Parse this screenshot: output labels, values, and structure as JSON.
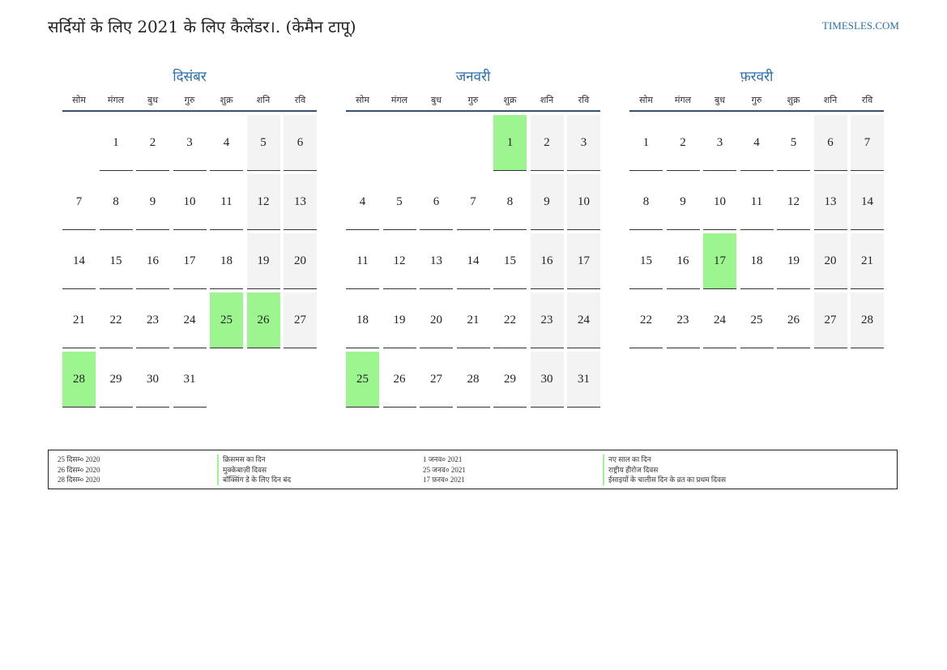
{
  "header": {
    "title": "सर्दियों के लिए 2021 के लिए कैलेंडर।. (केमैन टापू)",
    "brand": "TIMESLES.COM"
  },
  "colors": {
    "holiday": "#9cf58f",
    "weekend": "#f3f3f3",
    "accent": "#2a6fb0",
    "rule": "#3c4f6b"
  },
  "weekdays": [
    "सोम",
    "मंगल",
    "बुध",
    "गुरु",
    "शुक्र",
    "शनि",
    "रवि"
  ],
  "months": [
    {
      "name": "दिसंबर",
      "offset": 1,
      "days": 31,
      "holidays": [
        25,
        26,
        28
      ]
    },
    {
      "name": "जनवरी",
      "offset": 4,
      "days": 31,
      "holidays": [
        1,
        25
      ]
    },
    {
      "name": "फ़रवरी",
      "offset": 0,
      "days": 28,
      "holidays": [
        17
      ]
    }
  ],
  "legend": {
    "left": [
      {
        "date": "25 दिसम्‍० 2020",
        "name": "क्रिसमस का दिन"
      },
      {
        "date": "26 दिसम्‍० 2020",
        "name": "मुक्केबाज़ी दिवस"
      },
      {
        "date": "28 दिसम्‍० 2020",
        "name": "बॉक्सिंग डे के लिए दिन बंद"
      }
    ],
    "right": [
      {
        "date": "1 जनव० 2021",
        "name": "नए साल का दिन"
      },
      {
        "date": "25 जनव० 2021",
        "name": "राष्ट्रीय हीरोज दिवस"
      },
      {
        "date": "17 फ़रव० 2021",
        "name": "ईसाइयों के चालीस दिन के व्रत का प्रथम दिवस"
      }
    ]
  }
}
